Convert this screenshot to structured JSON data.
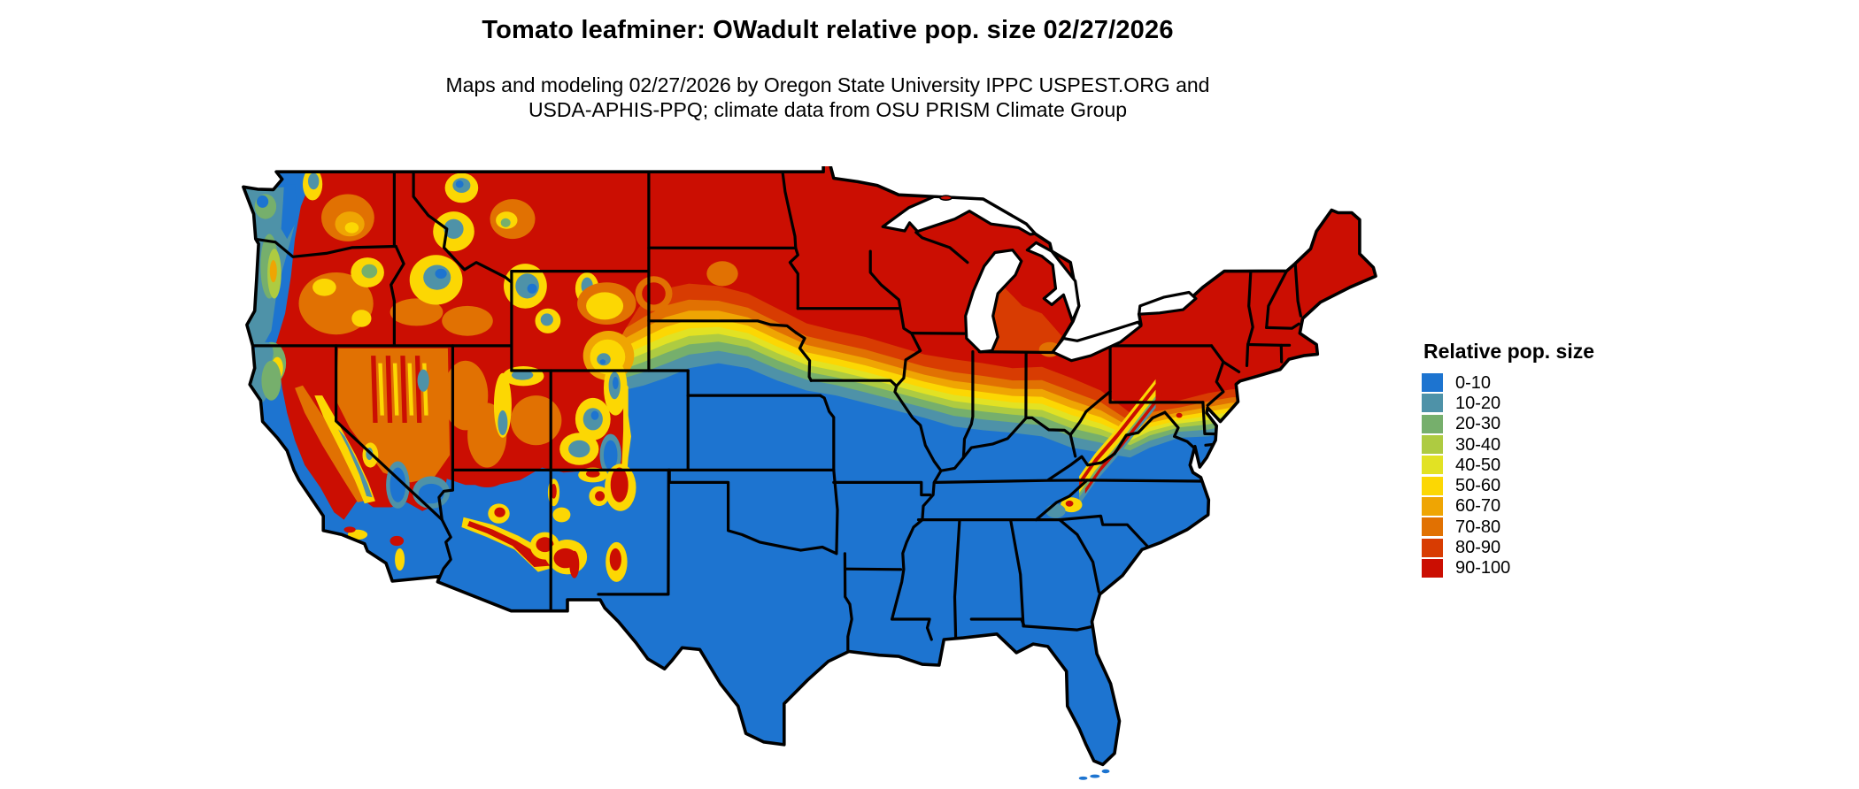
{
  "header": {
    "title": "Tomato leafminer: OWadult relative pop. size 02/27/2026",
    "subtitle_line1": "Maps and modeling 02/27/2026 by Oregon State University IPPC USPEST.ORG and",
    "subtitle_line2": "USDA-APHIS-PPQ; climate data from OSU PRISM Climate Group"
  },
  "map": {
    "region": "Continental United States",
    "type": "raster choropleth with state borders",
    "border_color": "#000000",
    "water_color": "#ffffff",
    "background_color": "#ffffff"
  },
  "legend": {
    "title": "Relative pop. size",
    "items": [
      {
        "label": "0-10",
        "color": "#1D74D0"
      },
      {
        "label": "10-20",
        "color": "#4E92A8"
      },
      {
        "label": "20-30",
        "color": "#76AF6C"
      },
      {
        "label": "30-40",
        "color": "#AECB41"
      },
      {
        "label": "40-50",
        "color": "#E2E223"
      },
      {
        "label": "50-60",
        "color": "#FCD703"
      },
      {
        "label": "60-70",
        "color": "#EFA503"
      },
      {
        "label": "70-80",
        "color": "#E17102"
      },
      {
        "label": "80-90",
        "color": "#D83C02"
      },
      {
        "label": "90-100",
        "color": "#CB0E02"
      }
    ]
  }
}
